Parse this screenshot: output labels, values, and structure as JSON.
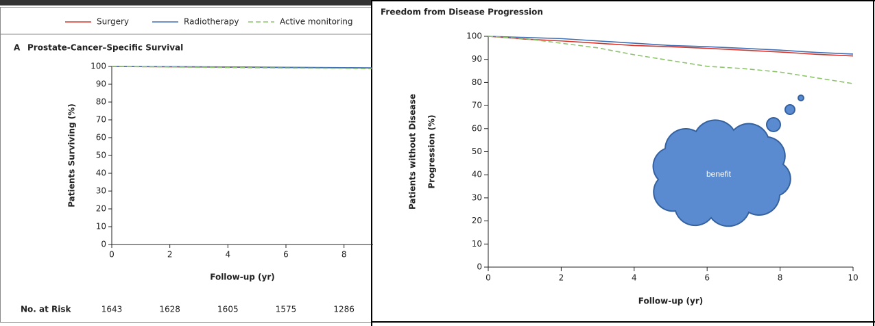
{
  "chart_data": [
    {
      "type": "line",
      "panel": "A",
      "title": "Prostate-Cancer–Specific Survival",
      "ylabel": "Patients Surviving (%)",
      "xlabel": "Follow-up (yr)",
      "ylim": [
        0,
        100
      ],
      "yticks": [
        0,
        10,
        20,
        30,
        40,
        50,
        60,
        70,
        80,
        90,
        100
      ],
      "xlim": [
        0,
        9
      ],
      "xticks": [
        0,
        2,
        4,
        6,
        8
      ],
      "x": [
        0,
        2,
        4,
        6,
        8,
        9
      ],
      "series": [
        {
          "name": "Surgery",
          "color": "#d9342b",
          "dashed": false,
          "values": [
            100,
            99.8,
            99.6,
            99.4,
            99.2,
            99.1
          ]
        },
        {
          "name": "Radiotherapy",
          "color": "#3f6fb5",
          "dashed": false,
          "values": [
            100,
            99.9,
            99.7,
            99.5,
            99.3,
            99.2
          ]
        },
        {
          "name": "Active monitoring",
          "color": "#8cc46a",
          "dashed": true,
          "values": [
            100,
            99.7,
            99.4,
            99.1,
            98.9,
            98.7
          ]
        }
      ],
      "legend": "top",
      "risk_label": "No. at Risk",
      "risk_counts": [
        1643,
        1628,
        1605,
        1575,
        1286
      ]
    },
    {
      "type": "line",
      "title": "Freedom from Disease Progression",
      "ylabel": [
        "Patients without Disease",
        "Progression (%)"
      ],
      "xlabel": "Follow-up (yr)",
      "ylim": [
        0,
        100
      ],
      "yticks": [
        0,
        10,
        20,
        30,
        40,
        50,
        60,
        70,
        80,
        90,
        100
      ],
      "xlim": [
        0,
        10
      ],
      "xticks": [
        0,
        2,
        4,
        6,
        8,
        10
      ],
      "x": [
        0,
        1,
        2,
        3,
        4,
        5,
        6,
        7,
        8,
        9,
        10
      ],
      "series": [
        {
          "color": "#d9342b",
          "dashed": false,
          "values": [
            100,
            98.8,
            98,
            97,
            96,
            95.5,
            94.8,
            94,
            93.2,
            92.2,
            91.5
          ]
        },
        {
          "color": "#3f6fb5",
          "dashed": false,
          "values": [
            100,
            99.5,
            99,
            98,
            97,
            96,
            95.5,
            94.8,
            94,
            93,
            92.3
          ]
        },
        {
          "color": "#8cc46a",
          "dashed": true,
          "values": [
            100,
            99,
            97,
            95,
            92,
            89.5,
            87,
            86,
            84.5,
            82,
            79.5
          ]
        }
      ],
      "annotation": "benefit"
    }
  ]
}
